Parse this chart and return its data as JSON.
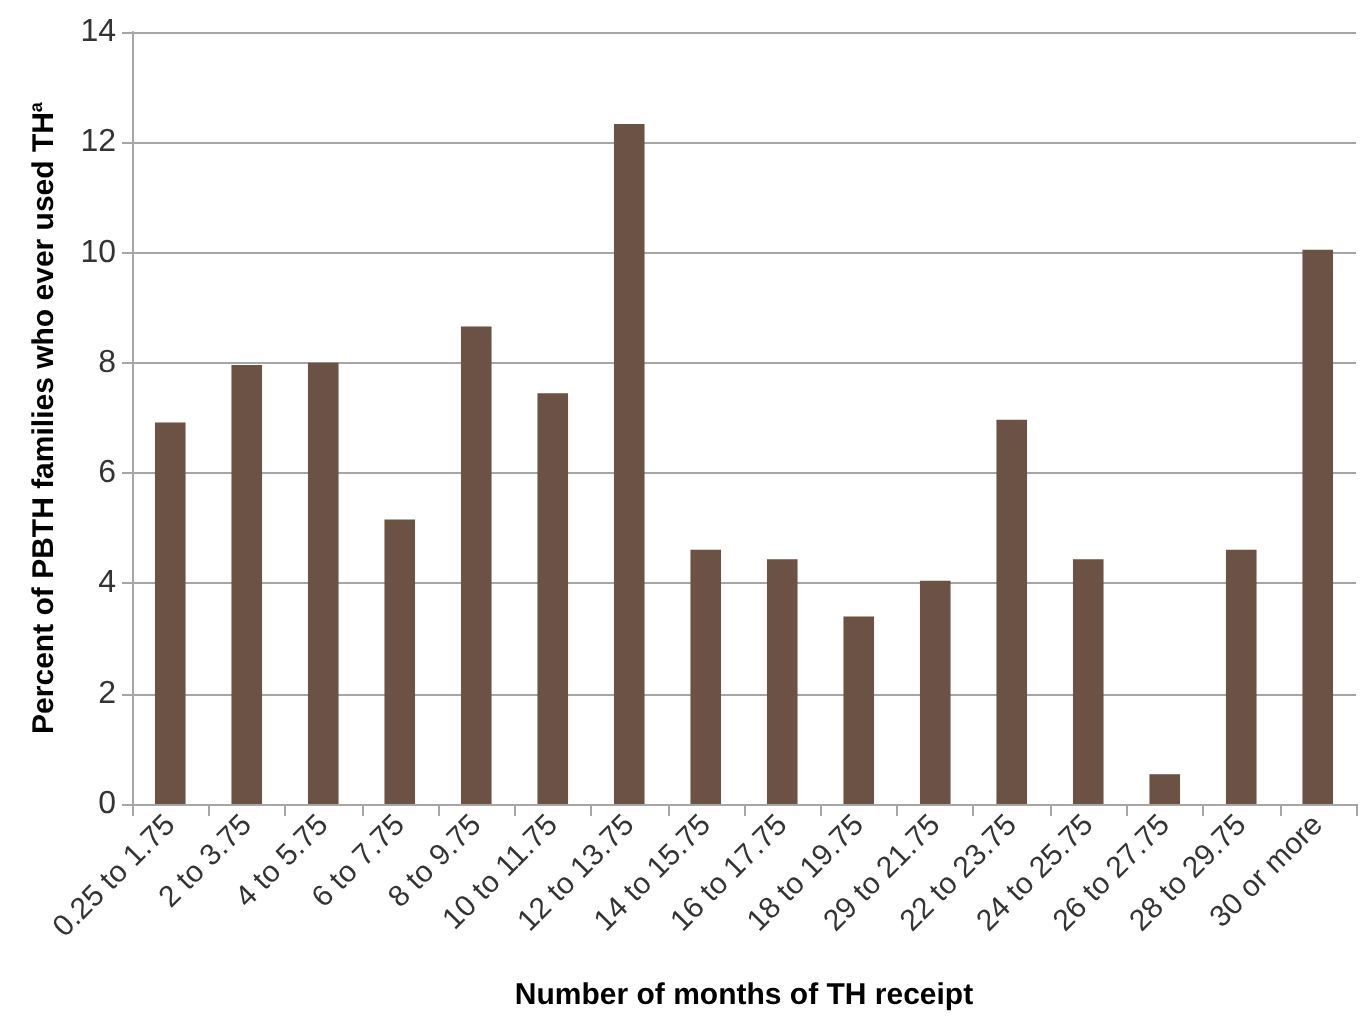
{
  "chart_data": {
    "type": "bar",
    "xlabel": "Number of months of TH receipt",
    "ylabel": "Percent of PBTH families who ever used TH$^{a}$",
    "categories": [
      "0.25 to 1.75",
      "2 to 3.75",
      "4 to 5.75",
      "6 to 7.75",
      "8 to 9.75",
      "10 to 11.75",
      "12 to 13.75",
      "14 to 15.75",
      "16 to 17.75",
      "18 to 19.75",
      "29 to 21.75",
      "22 to 23.75",
      "24 to 25.75",
      "26 to 27.75",
      "28 to 29.75",
      "30 or more"
    ],
    "values": [
      6.92,
      7.96,
      8.0,
      5.16,
      8.66,
      7.45,
      12.33,
      4.61,
      4.44,
      3.4,
      4.05,
      6.97,
      4.44,
      0.54,
      4.61,
      10.05
    ],
    "color": "#6b5244",
    "ylim": [
      0,
      14
    ],
    "yticks": [
      0,
      2,
      4,
      6,
      8,
      10,
      12,
      14
    ],
    "grid": "y"
  }
}
